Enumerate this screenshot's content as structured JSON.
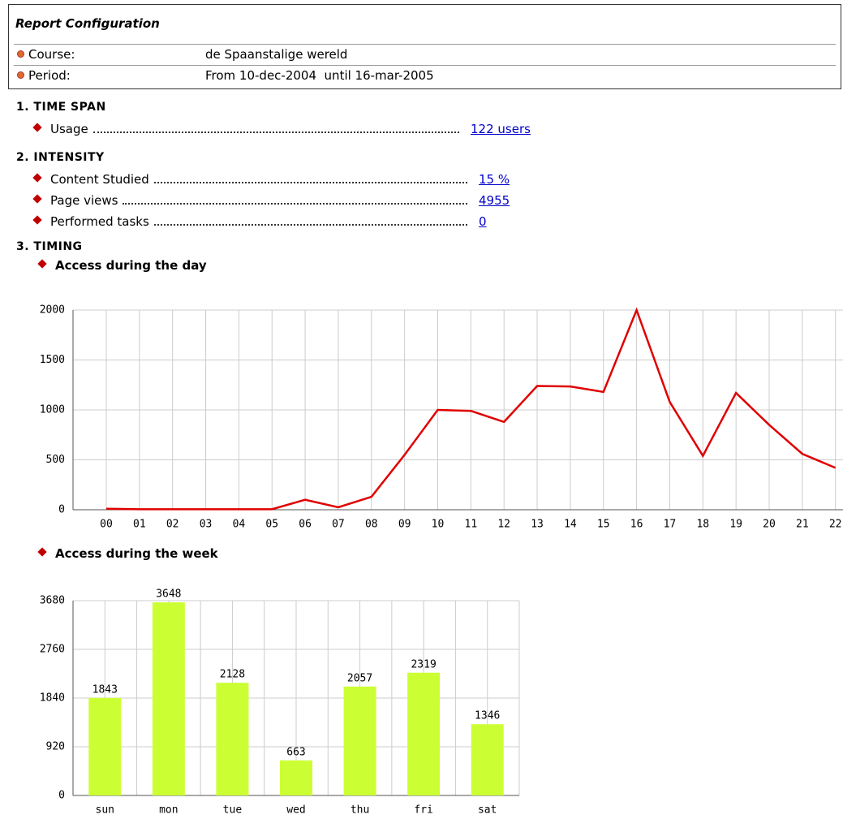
{
  "config": {
    "title": "Report Configuration",
    "rows": [
      {
        "label": "Course:",
        "value": "de Spaanstalige wereld"
      },
      {
        "label": "Period:",
        "value": "From 10-dec-2004  until 16-mar-2005"
      }
    ]
  },
  "sections": [
    {
      "title": "1. TIME SPAN",
      "items": [
        {
          "label": "Usage",
          "value": "122 users"
        }
      ]
    },
    {
      "title": "2. INTENSITY",
      "items": [
        {
          "label": "Content Studied",
          "value": "15 %"
        },
        {
          "label": "Page views",
          "value": "4955"
        },
        {
          "label": "Performed tasks",
          "value": "0"
        }
      ]
    },
    {
      "title": "3. TIMING",
      "items": []
    }
  ],
  "chart_data": [
    {
      "type": "line",
      "title": "Access during the day",
      "color": "#e00000",
      "categories": [
        "00",
        "01",
        "02",
        "03",
        "04",
        "05",
        "06",
        "07",
        "08",
        "09",
        "10",
        "11",
        "12",
        "13",
        "14",
        "15",
        "16",
        "17",
        "18",
        "19",
        "20",
        "21",
        "22"
      ],
      "values": [
        10,
        5,
        5,
        5,
        5,
        5,
        100,
        25,
        130,
        550,
        1000,
        990,
        880,
        1240,
        1235,
        1180,
        2000,
        1080,
        540,
        1170,
        850,
        560,
        420
      ],
      "ylim": [
        0,
        2000
      ],
      "yticks": [
        0,
        500,
        1000,
        1500,
        2000
      ],
      "grid": true
    },
    {
      "type": "bar",
      "title": "Access during the week",
      "color": "#ccff33",
      "categories": [
        "sun",
        "mon",
        "tue",
        "wed",
        "thu",
        "fri",
        "sat"
      ],
      "values": [
        1843,
        3648,
        2128,
        663,
        2057,
        2319,
        1346
      ],
      "ylim": [
        0,
        3680
      ],
      "yticks": [
        0,
        920,
        1840,
        2760,
        3680
      ],
      "grid": true
    }
  ]
}
